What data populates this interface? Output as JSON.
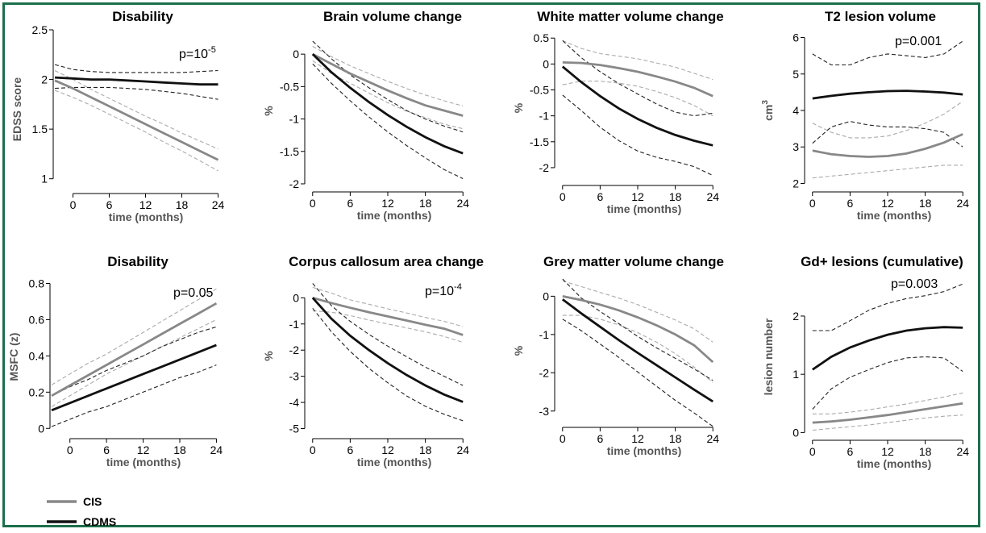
{
  "colors": {
    "frame": "#1b6f4a",
    "cis": "#888888",
    "cdms": "#111111",
    "cis_ci": "#aaaaaa",
    "cdms_ci": "#222222",
    "axis_label": "#555555"
  },
  "legend": [
    {
      "label": "CIS",
      "color": "#888888"
    },
    {
      "label": "CDMS",
      "color": "#111111"
    }
  ],
  "chart_data": [
    {
      "type": "line",
      "title": "Disability",
      "xlabel": "time (months)",
      "ylabel": "EDSS score",
      "xlim": [
        -3,
        25
      ],
      "ylim": [
        0.9,
        2.5
      ],
      "xticks": [
        0,
        6,
        12,
        18,
        24
      ],
      "yticks": [
        1,
        1.5,
        2,
        2.5
      ],
      "ytick_labels": [
        "1",
        "1.5",
        "2",
        "2.5"
      ],
      "annotation": {
        "text": "p=10",
        "sup": "-5"
      },
      "x": [
        -3,
        0,
        3,
        6,
        9,
        12,
        15,
        18,
        21,
        24
      ],
      "series": [
        {
          "name": "CIS",
          "values": [
            1.99,
            1.91,
            1.82,
            1.73,
            1.64,
            1.55,
            1.46,
            1.37,
            1.28,
            1.19
          ],
          "ci_lower": [
            1.89,
            1.82,
            1.74,
            1.65,
            1.56,
            1.47,
            1.37,
            1.28,
            1.18,
            1.08
          ],
          "ci_upper": [
            2.09,
            2.0,
            1.9,
            1.81,
            1.72,
            1.63,
            1.55,
            1.46,
            1.38,
            1.3
          ]
        },
        {
          "name": "CDMS",
          "values": [
            2.02,
            2.01,
            2.0,
            2.0,
            1.99,
            1.98,
            1.97,
            1.96,
            1.95,
            1.95
          ],
          "ci_lower": [
            1.91,
            1.92,
            1.92,
            1.92,
            1.91,
            1.9,
            1.88,
            1.86,
            1.83,
            1.8
          ],
          "ci_upper": [
            2.15,
            2.1,
            2.08,
            2.07,
            2.07,
            2.07,
            2.07,
            2.07,
            2.08,
            2.09
          ]
        }
      ]
    },
    {
      "type": "line",
      "title": "Brain volume change",
      "xlabel": "time (months)",
      "ylabel": "%",
      "xlim": [
        -1,
        25
      ],
      "ylim": [
        -2.05,
        0.3
      ],
      "xticks": [
        0,
        6,
        12,
        18,
        24
      ],
      "yticks": [
        0,
        -0.5,
        -1,
        -1.5,
        -2
      ],
      "ytick_labels": [
        "0",
        "-0.5",
        "-1",
        "-1.5",
        "-2"
      ],
      "x": [
        0,
        3,
        6,
        9,
        12,
        15,
        18,
        21,
        24
      ],
      "series": [
        {
          "name": "CIS",
          "values": [
            0,
            -0.15,
            -0.3,
            -0.43,
            -0.56,
            -0.68,
            -0.79,
            -0.87,
            -0.95
          ],
          "ci_lower": [
            -0.1,
            -0.3,
            -0.45,
            -0.6,
            -0.75,
            -0.88,
            -0.98,
            -1.08,
            -1.15
          ],
          "ci_upper": [
            0.12,
            -0.04,
            -0.18,
            -0.3,
            -0.42,
            -0.53,
            -0.63,
            -0.72,
            -0.8
          ]
        },
        {
          "name": "CDMS",
          "values": [
            0,
            -0.28,
            -0.52,
            -0.74,
            -0.94,
            -1.12,
            -1.28,
            -1.42,
            -1.53
          ],
          "ci_lower": [
            -0.15,
            -0.45,
            -0.72,
            -0.97,
            -1.2,
            -1.41,
            -1.6,
            -1.78,
            -1.92
          ],
          "ci_upper": [
            0.2,
            -0.07,
            -0.32,
            -0.52,
            -0.7,
            -0.87,
            -1.0,
            -1.11,
            -1.2
          ]
        }
      ]
    },
    {
      "type": "line",
      "title": "White matter volume change",
      "xlabel": "time (months)",
      "ylabel": "%",
      "xlim": [
        -1,
        25
      ],
      "ylim": [
        -2.25,
        0.55
      ],
      "xticks": [
        0,
        6,
        12,
        18,
        24
      ],
      "yticks": [
        0.5,
        0,
        -0.5,
        -1,
        -1.5,
        -2
      ],
      "ytick_labels": [
        "0.5",
        "0",
        "-0.5",
        "-1",
        "-1.5",
        "-2"
      ],
      "x": [
        0,
        3,
        6,
        9,
        12,
        15,
        18,
        21,
        24
      ],
      "series": [
        {
          "name": "CIS",
          "values": [
            0.03,
            0.02,
            -0.02,
            -0.08,
            -0.15,
            -0.24,
            -0.34,
            -0.46,
            -0.62
          ],
          "ci_lower": [
            -0.4,
            -0.33,
            -0.33,
            -0.37,
            -0.43,
            -0.53,
            -0.65,
            -0.8,
            -1.0
          ],
          "ci_upper": [
            0.45,
            0.3,
            0.2,
            0.15,
            0.1,
            0.02,
            -0.06,
            -0.18,
            -0.3
          ]
        },
        {
          "name": "CDMS",
          "values": [
            -0.05,
            -0.35,
            -0.62,
            -0.86,
            -1.06,
            -1.23,
            -1.37,
            -1.48,
            -1.57
          ],
          "ci_lower": [
            -0.6,
            -0.9,
            -1.22,
            -1.48,
            -1.68,
            -1.8,
            -1.88,
            -1.98,
            -2.15
          ],
          "ci_upper": [
            0.45,
            0.12,
            -0.15,
            -0.38,
            -0.58,
            -0.77,
            -0.93,
            -1.0,
            -0.95
          ]
        }
      ]
    },
    {
      "type": "line",
      "title": "T2 lesion volume",
      "xlabel": "time (months)",
      "ylabel": "cm",
      "ylabel_sup": "3",
      "xlim": [
        -1,
        25
      ],
      "ylim": [
        1.9,
        6.1
      ],
      "xticks": [
        0,
        6,
        12,
        18,
        24
      ],
      "yticks": [
        2,
        3,
        4,
        5,
        6
      ],
      "ytick_labels": [
        "2",
        "3",
        "4",
        "5",
        "6"
      ],
      "annotation": {
        "text": "p=0.001",
        "sup": ""
      },
      "x": [
        0,
        3,
        6,
        9,
        12,
        15,
        18,
        21,
        24
      ],
      "series": [
        {
          "name": "CIS",
          "values": [
            2.9,
            2.8,
            2.75,
            2.73,
            2.75,
            2.82,
            2.95,
            3.12,
            3.35
          ],
          "ci_lower": [
            2.15,
            2.2,
            2.25,
            2.3,
            2.35,
            2.4,
            2.45,
            2.5,
            2.5
          ],
          "ci_upper": [
            3.65,
            3.4,
            3.25,
            3.25,
            3.3,
            3.45,
            3.65,
            3.9,
            4.25
          ]
        },
        {
          "name": "CDMS",
          "values": [
            4.33,
            4.4,
            4.46,
            4.5,
            4.53,
            4.54,
            4.52,
            4.49,
            4.44
          ],
          "ci_lower": [
            3.1,
            3.55,
            3.7,
            3.6,
            3.55,
            3.55,
            3.5,
            3.4,
            3.0
          ],
          "ci_upper": [
            5.55,
            5.25,
            5.25,
            5.45,
            5.55,
            5.5,
            5.45,
            5.55,
            5.9
          ]
        }
      ]
    },
    {
      "type": "line",
      "title": "Disability",
      "xlabel": "time (months)",
      "ylabel": "MSFC (z)",
      "xlim": [
        -3,
        25
      ],
      "ylim": [
        -0.03,
        0.82
      ],
      "xticks": [
        0,
        6,
        12,
        18,
        24
      ],
      "yticks": [
        0,
        0.2,
        0.4,
        0.6,
        0.8
      ],
      "ytick_labels": [
        "0",
        "0.2",
        "0.4",
        "0.6",
        "0.8"
      ],
      "annotation": {
        "text": "p=0.05",
        "sup": ""
      },
      "x": [
        -3,
        0,
        3,
        6,
        9,
        12,
        15,
        18,
        21,
        24
      ],
      "series": [
        {
          "name": "CIS",
          "values": [
            0.18,
            0.237,
            0.293,
            0.35,
            0.407,
            0.463,
            0.52,
            0.577,
            0.633,
            0.69
          ],
          "ci_lower": [
            0.12,
            0.18,
            0.24,
            0.3,
            0.35,
            0.4,
            0.45,
            0.5,
            0.55,
            0.6
          ],
          "ci_upper": [
            0.24,
            0.3,
            0.36,
            0.41,
            0.47,
            0.53,
            0.59,
            0.65,
            0.71,
            0.77
          ]
        },
        {
          "name": "CDMS",
          "values": [
            0.1,
            0.14,
            0.18,
            0.22,
            0.26,
            0.3,
            0.34,
            0.38,
            0.42,
            0.46
          ],
          "ci_lower": [
            0.01,
            0.05,
            0.09,
            0.12,
            0.16,
            0.2,
            0.24,
            0.28,
            0.31,
            0.35
          ],
          "ci_upper": [
            0.18,
            0.23,
            0.27,
            0.32,
            0.36,
            0.4,
            0.45,
            0.49,
            0.53,
            0.56
          ]
        }
      ]
    },
    {
      "type": "line",
      "title": "Corpus callosum area change",
      "xlabel": "time (months)",
      "ylabel": "%",
      "xlim": [
        -1,
        25
      ],
      "ylim": [
        -5.2,
        0.75
      ],
      "xticks": [
        0,
        6,
        12,
        18,
        24
      ],
      "yticks": [
        0,
        -1,
        -2,
        -3,
        -4,
        -5
      ],
      "ytick_labels": [
        "0",
        "-1",
        "-2",
        "-3",
        "-4",
        "-5"
      ],
      "annotation": {
        "text": "p=10",
        "sup": "-4"
      },
      "x": [
        0,
        3,
        6,
        9,
        12,
        15,
        18,
        21,
        24
      ],
      "series": [
        {
          "name": "CIS",
          "values": [
            0,
            -0.2,
            -0.38,
            -0.55,
            -0.71,
            -0.87,
            -1.03,
            -1.18,
            -1.42
          ],
          "ci_lower": [
            -0.5,
            -0.55,
            -0.68,
            -0.85,
            -1.0,
            -1.15,
            -1.3,
            -1.48,
            -1.7
          ],
          "ci_upper": [
            0.4,
            0.18,
            -0.08,
            -0.25,
            -0.42,
            -0.58,
            -0.75,
            -0.9,
            -1.1
          ]
        },
        {
          "name": "CDMS",
          "values": [
            0,
            -0.8,
            -1.45,
            -2.0,
            -2.5,
            -2.95,
            -3.35,
            -3.7,
            -3.98
          ],
          "ci_lower": [
            -0.4,
            -1.3,
            -2.05,
            -2.7,
            -3.25,
            -3.75,
            -4.15,
            -4.45,
            -4.7
          ],
          "ci_upper": [
            0.55,
            -0.3,
            -0.9,
            -1.4,
            -1.85,
            -2.25,
            -2.65,
            -3.0,
            -3.35
          ]
        }
      ]
    },
    {
      "type": "line",
      "title": "Grey matter volume change",
      "xlabel": "time (months)",
      "ylabel": "%",
      "xlim": [
        -1,
        25
      ],
      "ylim": [
        -3.3,
        0.45
      ],
      "xticks": [
        0,
        6,
        12,
        18,
        24
      ],
      "yticks": [
        0,
        -1,
        -2,
        -3
      ],
      "ytick_labels": [
        "0",
        "-1",
        "-2",
        "-3"
      ],
      "x": [
        0,
        3,
        6,
        9,
        12,
        15,
        18,
        21,
        24
      ],
      "series": [
        {
          "name": "CIS",
          "values": [
            0,
            -0.1,
            -0.22,
            -0.37,
            -0.55,
            -0.76,
            -1.0,
            -1.28,
            -1.72
          ],
          "ci_lower": [
            -0.5,
            -0.5,
            -0.6,
            -0.75,
            -0.95,
            -1.2,
            -1.5,
            -1.85,
            -2.25
          ],
          "ci_upper": [
            0.4,
            0.25,
            0.1,
            -0.05,
            -0.22,
            -0.42,
            -0.62,
            -0.85,
            -1.2
          ]
        },
        {
          "name": "CDMS",
          "values": [
            -0.08,
            -0.45,
            -0.8,
            -1.15,
            -1.48,
            -1.8,
            -2.12,
            -2.44,
            -2.75
          ],
          "ci_lower": [
            -0.6,
            -0.9,
            -1.25,
            -1.6,
            -1.98,
            -2.35,
            -2.72,
            -3.05,
            -3.4
          ],
          "ci_upper": [
            0.45,
            -0.05,
            -0.4,
            -0.72,
            -1.05,
            -1.35,
            -1.62,
            -1.9,
            -2.2
          ]
        }
      ]
    },
    {
      "type": "line",
      "title": "Gd+ lesions (cumulative)",
      "xlabel": "time (months)",
      "ylabel": "lesion number",
      "xlim": [
        -1,
        25
      ],
      "ylim": [
        -0.05,
        2.65
      ],
      "xticks": [
        0,
        6,
        12,
        18,
        24
      ],
      "yticks": [
        0,
        1,
        2
      ],
      "ytick_labels": [
        "0",
        "1",
        "2"
      ],
      "annotation": {
        "text": "p=0.003",
        "sup": ""
      },
      "x": [
        0,
        3,
        6,
        9,
        12,
        15,
        18,
        21,
        24
      ],
      "series": [
        {
          "name": "CIS",
          "values": [
            0.17,
            0.19,
            0.22,
            0.26,
            0.3,
            0.35,
            0.4,
            0.45,
            0.5
          ],
          "ci_lower": [
            0.04,
            0.07,
            0.1,
            0.13,
            0.17,
            0.21,
            0.25,
            0.28,
            0.3
          ],
          "ci_upper": [
            0.32,
            0.32,
            0.35,
            0.39,
            0.44,
            0.49,
            0.55,
            0.61,
            0.68
          ]
        },
        {
          "name": "CDMS",
          "values": [
            1.08,
            1.3,
            1.46,
            1.58,
            1.68,
            1.75,
            1.79,
            1.81,
            1.8
          ],
          "ci_lower": [
            0.4,
            0.75,
            0.95,
            1.08,
            1.2,
            1.28,
            1.3,
            1.28,
            1.05
          ],
          "ci_upper": [
            1.75,
            1.75,
            1.92,
            2.1,
            2.22,
            2.3,
            2.35,
            2.42,
            2.55
          ]
        }
      ]
    }
  ]
}
